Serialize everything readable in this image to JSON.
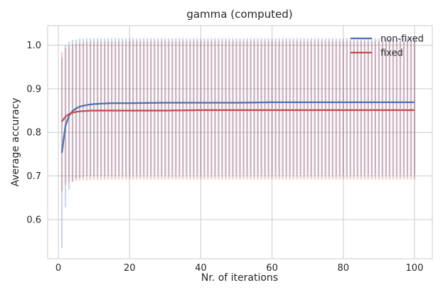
{
  "chart_data": {
    "type": "line",
    "title": "gamma (computed)",
    "xlabel": "Nr. of iterations",
    "ylabel": "Average accuracy",
    "xlim": [
      -3,
      105
    ],
    "ylim": [
      0.51,
      1.045
    ],
    "xticks": [
      0,
      20,
      40,
      60,
      80,
      100
    ],
    "yticks": [
      0.6,
      0.7,
      0.8,
      0.9,
      1.0
    ],
    "ytick_labels": [
      "0.6",
      "0.7",
      "0.8",
      "0.9",
      "1.0"
    ],
    "grid": true,
    "legend_position": "top-right",
    "error_bars": true,
    "series": [
      {
        "name": "non-fixed",
        "color": "#4c72b0",
        "x": [
          1,
          2,
          3,
          4,
          5,
          6,
          7,
          8,
          9,
          10,
          12,
          15,
          20,
          30,
          40,
          50,
          60,
          70,
          80,
          90,
          100
        ],
        "y": [
          0.753,
          0.815,
          0.838,
          0.849,
          0.855,
          0.859,
          0.861,
          0.863,
          0.864,
          0.865,
          0.866,
          0.867,
          0.867,
          0.868,
          0.868,
          0.868,
          0.869,
          0.869,
          0.869,
          0.869,
          0.869
        ],
        "err_low": [
          0.535,
          0.628,
          0.668,
          0.686,
          0.692,
          0.696,
          0.698,
          0.7,
          0.7,
          0.701,
          0.701,
          0.701,
          0.702,
          0.702,
          0.702,
          0.702,
          0.702,
          0.702,
          0.702,
          0.702,
          0.702
        ],
        "err_high": [
          0.972,
          1.0,
          1.008,
          1.012,
          1.013,
          1.015,
          1.015,
          1.016,
          1.016,
          1.016,
          1.016,
          1.016,
          1.016,
          1.016,
          1.016,
          1.016,
          1.016,
          1.016,
          1.016,
          1.016,
          1.016
        ]
      },
      {
        "name": "fixed",
        "color": "#c44e52",
        "x": [
          1,
          2,
          3,
          4,
          5,
          6,
          7,
          8,
          9,
          10,
          12,
          15,
          20,
          30,
          40,
          50,
          60,
          70,
          80,
          90,
          100
        ],
        "y": [
          0.825,
          0.836,
          0.842,
          0.845,
          0.847,
          0.848,
          0.849,
          0.849,
          0.85,
          0.85,
          0.85,
          0.85,
          0.85,
          0.85,
          0.851,
          0.851,
          0.851,
          0.851,
          0.851,
          0.851,
          0.851
        ],
        "err_low": [
          0.665,
          0.68,
          0.686,
          0.688,
          0.689,
          0.689,
          0.69,
          0.69,
          0.69,
          0.691,
          0.691,
          0.692,
          0.692,
          0.692,
          0.692,
          0.692,
          0.692,
          0.692,
          0.692,
          0.692,
          0.692
        ],
        "err_high": [
          0.985,
          0.994,
          0.998,
          1.002,
          1.004,
          1.006,
          1.007,
          1.008,
          1.008,
          1.008,
          1.008,
          1.008,
          1.009,
          1.009,
          1.009,
          1.009,
          1.009,
          1.009,
          1.009,
          1.009,
          1.009
        ]
      }
    ]
  }
}
